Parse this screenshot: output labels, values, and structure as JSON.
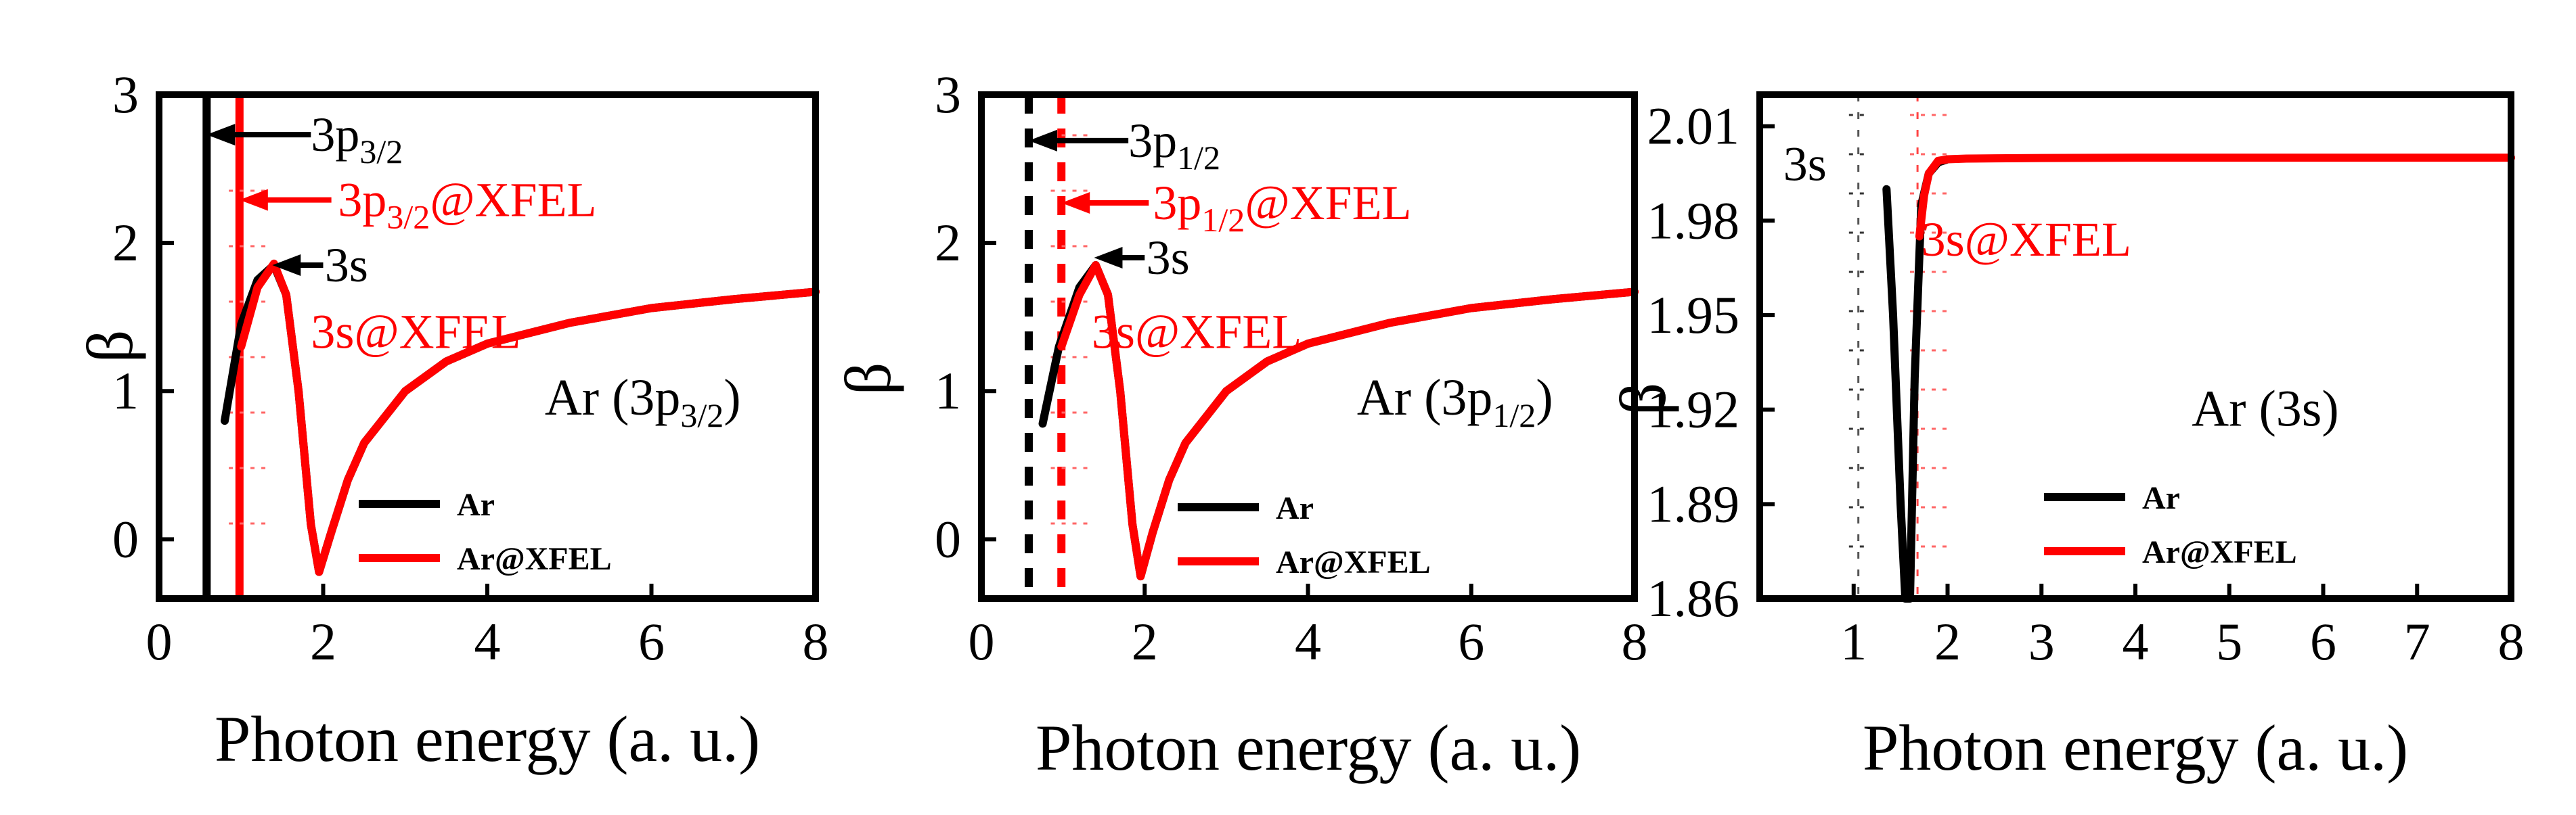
{
  "figure": {
    "xlabel": "Photon energy (a. u.)",
    "ylabel": "β",
    "legend": [
      "Ar",
      "Ar@XFEL"
    ],
    "colors": {
      "Ar": "#000000",
      "Ar@XFEL": "#ff0000"
    }
  },
  "chart_data": [
    {
      "type": "line",
      "title": "Ar (3p3/2)",
      "xlabel": "Photon energy (a. u.)",
      "ylabel": "β",
      "xlim": [
        0,
        8
      ],
      "ylim": [
        -0.4,
        3
      ],
      "xticks": [
        0,
        2,
        4,
        6,
        8
      ],
      "yticks": [
        0,
        1,
        2,
        3
      ],
      "legend_position": "lower-center",
      "series": [
        {
          "name": "Ar",
          "x": [
            0.8,
            1.0,
            1.2,
            1.4,
            1.55,
            1.7,
            1.85,
            1.95,
            2.1,
            2.3,
            2.5,
            3.0,
            3.5,
            4.0,
            5.0,
            6.0,
            7.0,
            8.0
          ],
          "y": [
            0.8,
            1.45,
            1.75,
            1.85,
            1.65,
            1.0,
            0.1,
            -0.22,
            0.05,
            0.4,
            0.65,
            1.0,
            1.2,
            1.32,
            1.46,
            1.56,
            1.62,
            1.67
          ]
        },
        {
          "name": "Ar@XFEL",
          "x": [
            1.0,
            1.2,
            1.4,
            1.55,
            1.7,
            1.85,
            1.95,
            2.1,
            2.3,
            2.5,
            3.0,
            3.5,
            4.0,
            5.0,
            6.0,
            7.0,
            8.0
          ],
          "y": [
            1.3,
            1.7,
            1.86,
            1.65,
            1.0,
            0.1,
            -0.22,
            0.05,
            0.4,
            0.65,
            1.0,
            1.2,
            1.32,
            1.46,
            1.56,
            1.62,
            1.67
          ]
        }
      ],
      "thresholds": [
        {
          "name": "Ar",
          "x": 0.58,
          "style": "solid"
        },
        {
          "name": "Ar@XFEL",
          "x": 0.98,
          "style": "solid"
        }
      ],
      "annotations": [
        {
          "base": "3p",
          "sub": "3/2",
          "color": "#000000",
          "tip_x": 0.58,
          "y": 2.73,
          "tail_x": 1.85,
          "tx": 1.85,
          "ty": 2.73
        },
        {
          "base": "3p",
          "sub": "3/2",
          "suffix": "@XFEL",
          "color": "#ff0000",
          "tip_x": 0.98,
          "y": 2.29,
          "tail_x": 2.1,
          "tx": 2.18,
          "ty": 2.29
        },
        {
          "base": "3s",
          "color": "#000000",
          "tip_x": 1.38,
          "y": 1.85,
          "tail_x": 2.0,
          "tx": 2.02,
          "ty": 1.85
        },
        {
          "base": "3s@XFEL",
          "color": "#ff0000",
          "tx": 1.85,
          "ty": 1.4
        }
      ],
      "panel_label": {
        "base": "Ar (3p",
        "sub": "3/2",
        "suffix": ")",
        "x": 4.7,
        "y": 0.95
      }
    },
    {
      "type": "line",
      "title": "Ar (3p1/2)",
      "xlabel": "Photon energy (a. u.)",
      "ylabel": "β",
      "xlim": [
        0,
        8
      ],
      "ylim": [
        -0.4,
        3
      ],
      "xticks": [
        0,
        2,
        4,
        6,
        8
      ],
      "yticks": [
        0,
        1,
        2,
        3
      ],
      "legend_position": "lower-center",
      "series": [
        {
          "name": "Ar",
          "x": [
            0.75,
            0.95,
            1.2,
            1.4,
            1.55,
            1.7,
            1.85,
            1.95,
            2.1,
            2.3,
            2.5,
            3.0,
            3.5,
            4.0,
            5.0,
            6.0,
            7.0,
            8.0
          ],
          "y": [
            0.78,
            1.3,
            1.7,
            1.85,
            1.65,
            1.0,
            0.1,
            -0.25,
            0.05,
            0.4,
            0.65,
            1.0,
            1.2,
            1.32,
            1.46,
            1.56,
            1.62,
            1.67
          ]
        },
        {
          "name": "Ar@XFEL",
          "x": [
            0.98,
            1.2,
            1.4,
            1.55,
            1.7,
            1.85,
            1.95,
            2.1,
            2.3,
            2.5,
            3.0,
            3.5,
            4.0,
            5.0,
            6.0,
            7.0,
            8.0
          ],
          "y": [
            1.3,
            1.65,
            1.85,
            1.65,
            1.0,
            0.1,
            -0.25,
            0.05,
            0.4,
            0.65,
            1.0,
            1.2,
            1.32,
            1.46,
            1.56,
            1.62,
            1.67
          ]
        }
      ],
      "thresholds": [
        {
          "name": "Ar",
          "x": 0.58,
          "style": "dashed"
        },
        {
          "name": "Ar@XFEL",
          "x": 0.98,
          "style": "dashed"
        }
      ],
      "annotations": [
        {
          "base": "3p",
          "sub": "1/2",
          "color": "#000000",
          "tip_x": 0.58,
          "y": 2.69,
          "tail_x": 1.8,
          "tx": 1.8,
          "ty": 2.69
        },
        {
          "base": "3p",
          "sub": "1/2",
          "suffix": "@XFEL",
          "color": "#ff0000",
          "tip_x": 0.98,
          "y": 2.27,
          "tail_x": 2.05,
          "tx": 2.1,
          "ty": 2.27
        },
        {
          "base": "3s",
          "color": "#000000",
          "tip_x": 1.38,
          "y": 1.9,
          "tail_x": 2.0,
          "tx": 2.02,
          "ty": 1.9
        },
        {
          "base": "3s@XFEL",
          "color": "#ff0000",
          "tx": 1.35,
          "ty": 1.4
        }
      ],
      "panel_label": {
        "base": "Ar (3p",
        "sub": "1/2",
        "suffix": ")",
        "x": 4.6,
        "y": 0.95
      }
    },
    {
      "type": "line",
      "title": "Ar (3s)",
      "xlabel": "Photon energy (a. u.)",
      "ylabel": "β",
      "xlim": [
        0,
        8
      ],
      "ylim": [
        1.86,
        2.02
      ],
      "xticks": [
        1,
        2,
        3,
        4,
        5,
        6,
        7,
        8
      ],
      "yticks": [
        1.86,
        1.89,
        1.92,
        1.95,
        1.98,
        2.01
      ],
      "legend_position": "lower-center",
      "series": [
        {
          "name": "Ar",
          "x": [
            1.35,
            1.42,
            1.5,
            1.55,
            1.6,
            1.65,
            1.72,
            1.8,
            1.9,
            2.0
          ],
          "y": [
            1.99,
            1.95,
            1.89,
            1.86,
            1.86,
            1.93,
            1.985,
            1.995,
            1.9985,
            1.9995
          ]
        },
        {
          "name": "Ar@XFEL",
          "x": [
            1.7,
            1.75,
            1.8,
            1.9,
            2.0,
            2.2,
            2.5,
            3.0,
            4.0,
            5.0,
            6.0,
            7.0,
            8.0
          ],
          "y": [
            1.975,
            1.988,
            1.995,
            1.999,
            1.9995,
            1.9997,
            1.9998,
            1.9999,
            2.0,
            2.0,
            2.0,
            2.0,
            2.0
          ]
        }
      ],
      "thresholds": [
        {
          "name": "Ar",
          "x": 1.05,
          "style": "dashed-light"
        },
        {
          "name": "Ar@XFEL",
          "x": 1.68,
          "style": "dashed-light"
        }
      ],
      "annotations": [
        {
          "base": "3s",
          "color": "#000000",
          "tx": 0.25,
          "ty": 1.998
        },
        {
          "base": "3s@XFEL",
          "color": "#ff0000",
          "tx": 1.72,
          "ty": 1.974
        }
      ],
      "panel_label": {
        "base": "Ar (3s)",
        "x": 4.6,
        "y": 1.92
      }
    }
  ]
}
